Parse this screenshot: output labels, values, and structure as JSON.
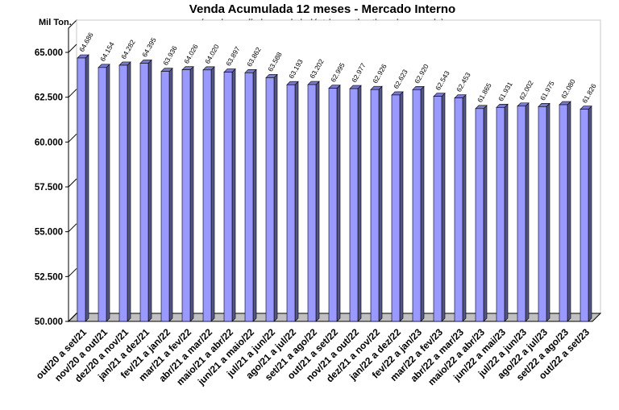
{
  "chart_data": {
    "type": "bar",
    "title": "Venda Acumulada 12 meses -  Mercado Interno",
    "subtitle": "(vendas preliminares da indústria e estimativas de mercado)",
    "ylabel": "Mil Ton.",
    "xlabel": "",
    "ylim": [
      50000,
      65000
    ],
    "yticks": [
      "50.000",
      "52.500",
      "55.000",
      "57.500",
      "60.000",
      "62.500",
      "65.000"
    ],
    "grid": false,
    "legend": "none",
    "bar_color": "#9999FF",
    "categories": [
      "out/20 a set/21",
      "nov/20 a out/21",
      "dez/20 a nov/21",
      "jan/21 a dez/21",
      "fev/21 a jan/22",
      "mar/21 a fev/22",
      "abr/21 a mar/22",
      "maio/21 a abr/22",
      "jun/21 a maio/22",
      "jul/21 a jun/22",
      "ago/21 a jul/22",
      "set/21 a ago/22",
      "out/21 a set/22",
      "nov/21 a out/22",
      "dez/21 a nov/22",
      "jan/22 a dez/22",
      "fev/22 a jan/23",
      "mar/22 a fev/23",
      "abr/22 a mar/23",
      "maio/22 a abr/23",
      "jun/22 a mai/23",
      "jul/22 a jun/23",
      "ago/22 a jul/23",
      "set/22 a ago/23",
      "out/22 a set/23"
    ],
    "values": [
      64686,
      64154,
      64282,
      64395,
      63936,
      64026,
      64020,
      63897,
      63862,
      63588,
      63193,
      63202,
      62995,
      62977,
      62926,
      62623,
      62920,
      62543,
      62453,
      61865,
      61931,
      62002,
      61975,
      62080,
      61826
    ],
    "value_labels": [
      "64.686",
      "64.154",
      "64.282",
      "64.395",
      "63.936",
      "64.026",
      "64.020",
      "63.897",
      "63.862",
      "63.588",
      "63.193",
      "63.202",
      "62.995",
      "62.977",
      "62.926",
      "62.623",
      "62.920",
      "62.543",
      "62.453",
      "61.865",
      "61.931",
      "62.002",
      "61.975",
      "62.080",
      "61.826"
    ]
  }
}
